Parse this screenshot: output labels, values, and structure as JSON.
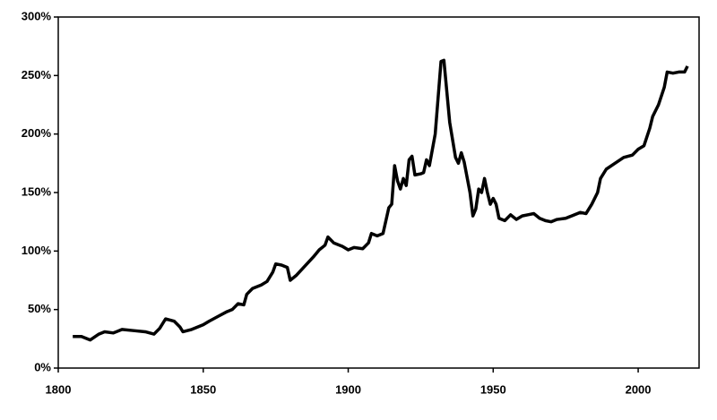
{
  "chart_data": {
    "type": "line",
    "x": [
      1805,
      1808,
      1811,
      1814,
      1816,
      1819,
      1822,
      1826,
      1830,
      1833,
      1835,
      1837,
      1840,
      1842,
      1843,
      1846,
      1850,
      1852,
      1855,
      1858,
      1860,
      1862,
      1864,
      1865,
      1867,
      1870,
      1872,
      1874,
      1875,
      1877,
      1879,
      1880,
      1882,
      1885,
      1888,
      1890,
      1892,
      1893,
      1895,
      1898,
      1900,
      1902,
      1905,
      1907,
      1908,
      1910,
      1912,
      1914,
      1915,
      1916,
      1917,
      1918,
      1919,
      1920,
      1921,
      1922,
      1923,
      1925,
      1926,
      1927,
      1928,
      1930,
      1932,
      1933,
      1935,
      1937,
      1938,
      1939,
      1940,
      1942,
      1943,
      1944,
      1945,
      1946,
      1947,
      1948,
      1949,
      1950,
      1951,
      1952,
      1954,
      1956,
      1958,
      1960,
      1962,
      1964,
      1966,
      1968,
      1970,
      1972,
      1975,
      1978,
      1980,
      1982,
      1984,
      1986,
      1987,
      1989,
      1992,
      1995,
      1998,
      2000,
      2002,
      2004,
      2005,
      2007,
      2009,
      2010,
      2012,
      2014,
      2016,
      2017
    ],
    "series": [
      {
        "color": "#000000",
        "values": [
          27,
          27,
          24,
          29,
          31,
          30,
          33,
          32,
          31,
          29,
          34,
          42,
          40,
          35,
          31,
          33,
          37,
          40,
          44,
          48,
          50,
          55,
          54,
          63,
          68,
          71,
          74,
          82,
          89,
          88,
          86,
          75,
          79,
          87,
          95,
          101,
          105,
          112,
          107,
          104,
          101,
          103,
          102,
          107,
          115,
          113,
          115,
          137,
          140,
          173,
          160,
          153,
          162,
          156,
          178,
          181,
          165,
          166,
          167,
          178,
          173,
          200,
          262,
          263,
          210,
          180,
          175,
          184,
          176,
          150,
          130,
          136,
          153,
          150,
          162,
          150,
          140,
          145,
          140,
          128,
          126,
          131,
          127,
          130,
          131,
          132,
          128,
          126,
          125,
          127,
          128,
          131,
          133,
          132,
          140,
          150,
          162,
          170,
          175,
          180,
          182,
          187,
          190,
          205,
          215,
          225,
          240,
          253,
          252,
          253,
          253,
          258
        ]
      }
    ],
    "xlim": [
      1800,
      2021
    ],
    "xticks": [
      1800,
      1850,
      1900,
      1950,
      2000
    ],
    "ylim": [
      0,
      300
    ],
    "yticks": [
      {
        "value": 0,
        "label": "0%"
      },
      {
        "value": 50,
        "label": "50%"
      },
      {
        "value": 100,
        "label": "100%"
      },
      {
        "value": 150,
        "label": "150%"
      },
      {
        "value": 200,
        "label": "200%"
      },
      {
        "value": 250,
        "label": "250%"
      },
      {
        "value": 300,
        "label": "300%"
      }
    ],
    "grid": false
  }
}
